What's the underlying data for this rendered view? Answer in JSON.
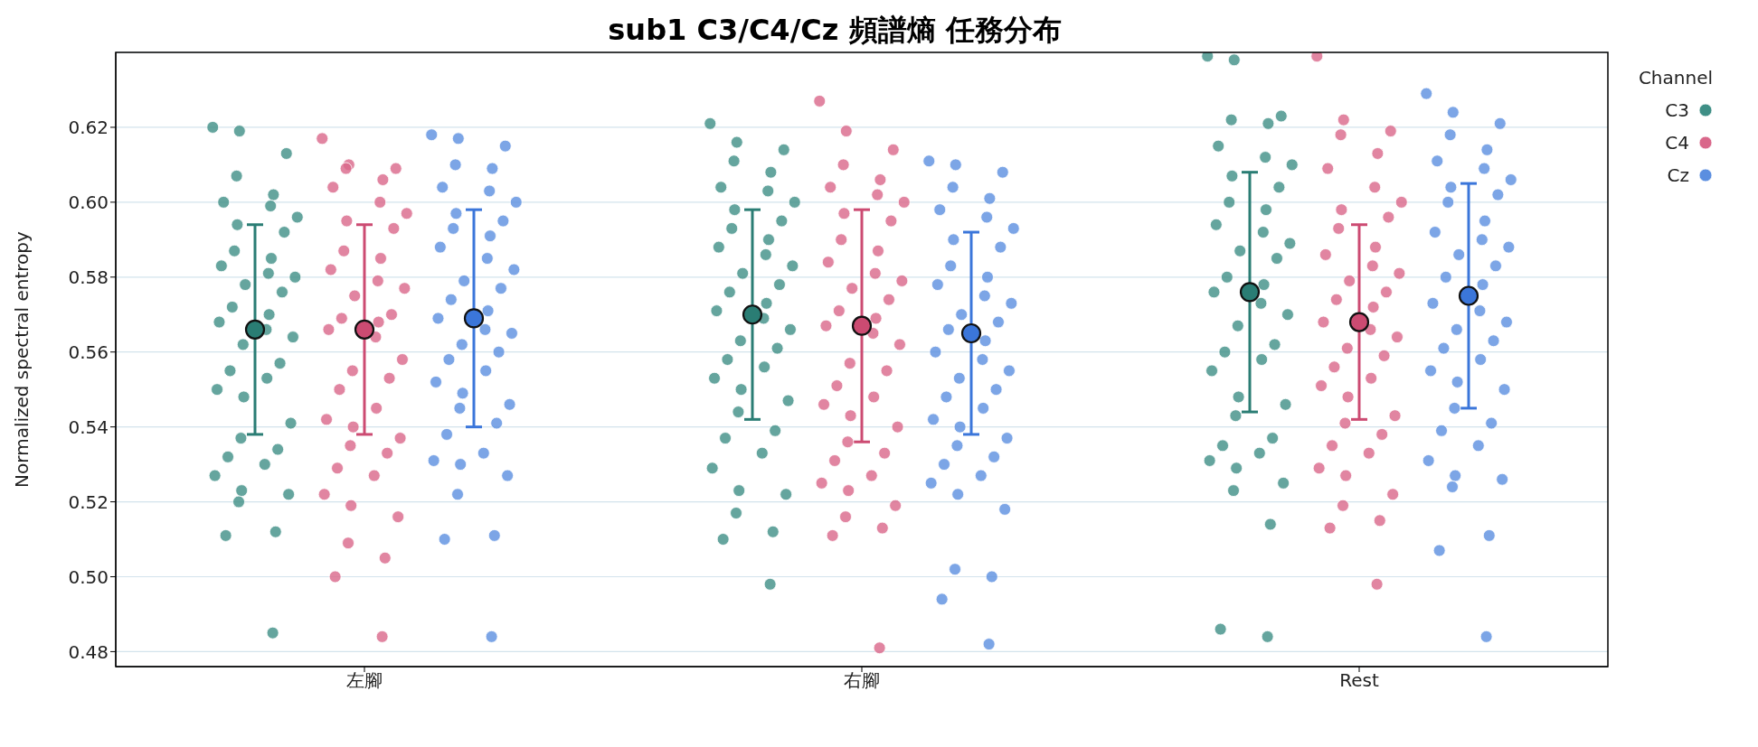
{
  "chart_data": {
    "type": "scatter",
    "title": "sub1 C3/C4/Cz 頻譜熵 任務分布",
    "ylabel": "Normalized spectral entropy",
    "legend_title": "Channel",
    "categories": [
      "左腳",
      "右腳",
      "Rest"
    ],
    "ylim": [
      0.476,
      0.64
    ],
    "yticks": [
      0.48,
      {
        "value": 0.5,
        "label": "0.50"
      },
      0.52,
      0.54,
      0.56,
      0.58,
      {
        "value": 0.6,
        "label": "0.60"
      },
      0.62
    ],
    "grid": "y",
    "legend": "top right",
    "marker": "circle",
    "series": [
      {
        "name": "C3",
        "color": "#3f8f86",
        "x": [
          "左腳",
          "左腳",
          "左腳",
          "左腳",
          "左腳",
          "左腳",
          "左腳",
          "左腳",
          "左腳",
          "左腳",
          "左腳",
          "左腳",
          "左腳",
          "左腳",
          "左腳",
          "左腳",
          "左腳",
          "左腳",
          "左腳",
          "左腳",
          "左腳",
          "左腳",
          "左腳",
          "左腳",
          "左腳",
          "左腳",
          "左腳",
          "左腳",
          "左腳",
          "左腳",
          "左腳",
          "左腳",
          "左腳",
          "左腳",
          "左腳",
          "左腳",
          "左腳",
          "左腳",
          "左腳",
          "左腳",
          "右腳",
          "右腳",
          "右腳",
          "右腳",
          "右腳",
          "右腳",
          "右腳",
          "右腳",
          "右腳",
          "右腳",
          "右腳",
          "右腳",
          "右腳",
          "右腳",
          "右腳",
          "右腳",
          "右腳",
          "右腳",
          "右腳",
          "右腳",
          "右腳",
          "右腳",
          "右腳",
          "右腳",
          "右腳",
          "右腳",
          "右腳",
          "右腳",
          "右腳",
          "右腳",
          "右腳",
          "右腳",
          "右腳",
          "右腳",
          "右腳",
          "右腳",
          "右腳",
          "右腳",
          "右腳",
          "右腳",
          "Rest",
          "Rest",
          "Rest",
          "Rest",
          "Rest",
          "Rest",
          "Rest",
          "Rest",
          "Rest",
          "Rest",
          "Rest",
          "Rest",
          "Rest",
          "Rest",
          "Rest",
          "Rest",
          "Rest",
          "Rest",
          "Rest",
          "Rest",
          "Rest",
          "Rest",
          "Rest",
          "Rest",
          "Rest",
          "Rest",
          "Rest",
          "Rest",
          "Rest",
          "Rest",
          "Rest",
          "Rest",
          "Rest",
          "Rest",
          "Rest",
          "Rest",
          "Rest",
          "Rest",
          "Rest",
          "Rest"
        ],
        "values": [
          0.62,
          0.619,
          0.613,
          0.607,
          0.602,
          0.6,
          0.599,
          0.596,
          0.594,
          0.592,
          0.587,
          0.585,
          0.583,
          0.581,
          0.58,
          0.578,
          0.576,
          0.572,
          0.57,
          0.568,
          0.566,
          0.564,
          0.562,
          0.557,
          0.555,
          0.553,
          0.55,
          0.548,
          0.541,
          0.537,
          0.534,
          0.532,
          0.53,
          0.527,
          0.523,
          0.522,
          0.52,
          0.512,
          0.511,
          0.485,
          0.621,
          0.616,
          0.614,
          0.611,
          0.608,
          0.604,
          0.603,
          0.6,
          0.598,
          0.595,
          0.593,
          0.59,
          0.588,
          0.586,
          0.583,
          0.581,
          0.578,
          0.576,
          0.573,
          0.571,
          0.569,
          0.566,
          0.563,
          0.561,
          0.558,
          0.556,
          0.553,
          0.55,
          0.547,
          0.544,
          0.539,
          0.537,
          0.533,
          0.529,
          0.523,
          0.522,
          0.517,
          0.512,
          0.51,
          0.498,
          0.639,
          0.638,
          0.623,
          0.622,
          0.621,
          0.615,
          0.612,
          0.61,
          0.607,
          0.604,
          0.6,
          0.598,
          0.594,
          0.592,
          0.589,
          0.587,
          0.585,
          0.58,
          0.578,
          0.576,
          0.573,
          0.57,
          0.567,
          0.562,
          0.56,
          0.558,
          0.555,
          0.548,
          0.546,
          0.543,
          0.537,
          0.535,
          0.533,
          0.531,
          0.529,
          0.525,
          0.523,
          0.514,
          0.486,
          0.484
        ]
      },
      {
        "name": "C4",
        "color": "#d9678a",
        "x": [
          "左腳",
          "左腳",
          "左腳",
          "左腳",
          "左腳",
          "左腳",
          "左腳",
          "左腳",
          "左腳",
          "左腳",
          "左腳",
          "左腳",
          "左腳",
          "左腳",
          "左腳",
          "左腳",
          "左腳",
          "左腳",
          "左腳",
          "左腳",
          "左腳",
          "左腳",
          "左腳",
          "左腳",
          "左腳",
          "左腳",
          "左腳",
          "左腳",
          "左腳",
          "左腳",
          "左腳",
          "左腳",
          "左腳",
          "左腳",
          "左腳",
          "左腳",
          "左腳",
          "左腳",
          "左腳",
          "左腳",
          "右腳",
          "右腳",
          "右腳",
          "右腳",
          "右腳",
          "右腳",
          "右腳",
          "右腳",
          "右腳",
          "右腳",
          "右腳",
          "右腳",
          "右腳",
          "右腳",
          "右腳",
          "右腳",
          "右腳",
          "右腳",
          "右腳",
          "右腳",
          "右腳",
          "右腳",
          "右腳",
          "右腳",
          "右腳",
          "右腳",
          "右腳",
          "右腳",
          "右腳",
          "右腳",
          "右腳",
          "右腳",
          "右腳",
          "右腳",
          "右腳",
          "右腳",
          "右腳",
          "右腳",
          "右腳",
          "右腳",
          "Rest",
          "Rest",
          "Rest",
          "Rest",
          "Rest",
          "Rest",
          "Rest",
          "Rest",
          "Rest",
          "Rest",
          "Rest",
          "Rest",
          "Rest",
          "Rest",
          "Rest",
          "Rest",
          "Rest",
          "Rest",
          "Rest",
          "Rest",
          "Rest",
          "Rest",
          "Rest",
          "Rest",
          "Rest",
          "Rest",
          "Rest",
          "Rest",
          "Rest",
          "Rest",
          "Rest",
          "Rest",
          "Rest",
          "Rest",
          "Rest",
          "Rest",
          "Rest",
          "Rest",
          "Rest",
          "Rest"
        ],
        "values": [
          0.617,
          0.61,
          0.609,
          0.609,
          0.606,
          0.604,
          0.6,
          0.597,
          0.595,
          0.593,
          0.587,
          0.585,
          0.582,
          0.579,
          0.577,
          0.575,
          0.57,
          0.569,
          0.568,
          0.566,
          0.564,
          0.558,
          0.555,
          0.553,
          0.55,
          0.545,
          0.542,
          0.54,
          0.537,
          0.535,
          0.533,
          0.529,
          0.527,
          0.522,
          0.519,
          0.516,
          0.509,
          0.505,
          0.5,
          0.484,
          0.627,
          0.619,
          0.614,
          0.61,
          0.606,
          0.604,
          0.602,
          0.6,
          0.597,
          0.595,
          0.59,
          0.587,
          0.584,
          0.581,
          0.579,
          0.577,
          0.574,
          0.571,
          0.569,
          0.567,
          0.565,
          0.562,
          0.557,
          0.555,
          0.551,
          0.548,
          0.546,
          0.543,
          0.54,
          0.536,
          0.533,
          0.531,
          0.527,
          0.525,
          0.523,
          0.519,
          0.516,
          0.513,
          0.511,
          0.481,
          0.639,
          0.622,
          0.619,
          0.618,
          0.613,
          0.609,
          0.604,
          0.6,
          0.598,
          0.596,
          0.593,
          0.588,
          0.586,
          0.583,
          0.581,
          0.579,
          0.576,
          0.574,
          0.572,
          0.568,
          0.566,
          0.564,
          0.561,
          0.559,
          0.556,
          0.553,
          0.551,
          0.548,
          0.543,
          0.541,
          0.538,
          0.535,
          0.533,
          0.529,
          0.527,
          0.522,
          0.519,
          0.515,
          0.513,
          0.498
        ]
      },
      {
        "name": "Cz",
        "color": "#5b8ee0",
        "x": [
          "左腳",
          "左腳",
          "左腳",
          "左腳",
          "左腳",
          "左腳",
          "左腳",
          "左腳",
          "左腳",
          "左腳",
          "左腳",
          "左腳",
          "左腳",
          "左腳",
          "左腳",
          "左腳",
          "左腳",
          "左腳",
          "左腳",
          "左腳",
          "左腳",
          "左腳",
          "左腳",
          "左腳",
          "左腳",
          "左腳",
          "左腳",
          "左腳",
          "左腳",
          "左腳",
          "左腳",
          "左腳",
          "左腳",
          "左腳",
          "左腳",
          "左腳",
          "左腳",
          "左腳",
          "左腳",
          "左腳",
          "右腳",
          "右腳",
          "右腳",
          "右腳",
          "右腳",
          "右腳",
          "右腳",
          "右腳",
          "右腳",
          "右腳",
          "右腳",
          "右腳",
          "右腳",
          "右腳",
          "右腳",
          "右腳",
          "右腳",
          "右腳",
          "右腳",
          "右腳",
          "右腳",
          "右腳",
          "右腳",
          "右腳",
          "右腳",
          "右腳",
          "右腳",
          "右腳",
          "右腳",
          "右腳",
          "右腳",
          "右腳",
          "右腳",
          "右腳",
          "右腳",
          "右腳",
          "右腳",
          "右腳",
          "右腳",
          "右腳",
          "Rest",
          "Rest",
          "Rest",
          "Rest",
          "Rest",
          "Rest",
          "Rest",
          "Rest",
          "Rest",
          "Rest",
          "Rest",
          "Rest",
          "Rest",
          "Rest",
          "Rest",
          "Rest",
          "Rest",
          "Rest",
          "Rest",
          "Rest",
          "Rest",
          "Rest",
          "Rest",
          "Rest",
          "Rest",
          "Rest",
          "Rest",
          "Rest",
          "Rest",
          "Rest",
          "Rest",
          "Rest",
          "Rest",
          "Rest",
          "Rest",
          "Rest",
          "Rest",
          "Rest",
          "Rest",
          "Rest"
        ],
        "values": [
          0.618,
          0.617,
          0.615,
          0.61,
          0.609,
          0.604,
          0.603,
          0.6,
          0.597,
          0.595,
          0.593,
          0.591,
          0.588,
          0.585,
          0.582,
          0.579,
          0.577,
          0.574,
          0.571,
          0.569,
          0.566,
          0.565,
          0.562,
          0.56,
          0.558,
          0.555,
          0.552,
          0.549,
          0.546,
          0.545,
          0.541,
          0.538,
          0.533,
          0.531,
          0.53,
          0.527,
          0.522,
          0.511,
          0.51,
          0.484,
          0.611,
          0.61,
          0.608,
          0.604,
          0.601,
          0.598,
          0.596,
          0.593,
          0.59,
          0.588,
          0.583,
          0.58,
          0.578,
          0.575,
          0.573,
          0.57,
          0.568,
          0.566,
          0.563,
          0.56,
          0.558,
          0.555,
          0.553,
          0.55,
          0.548,
          0.545,
          0.542,
          0.54,
          0.537,
          0.535,
          0.532,
          0.53,
          0.527,
          0.525,
          0.522,
          0.518,
          0.502,
          0.5,
          0.494,
          0.482,
          0.629,
          0.624,
          0.621,
          0.618,
          0.614,
          0.611,
          0.609,
          0.606,
          0.604,
          0.602,
          0.6,
          0.595,
          0.592,
          0.59,
          0.588,
          0.586,
          0.583,
          0.58,
          0.578,
          0.573,
          0.571,
          0.568,
          0.566,
          0.563,
          0.561,
          0.558,
          0.555,
          0.552,
          0.55,
          0.545,
          0.541,
          0.539,
          0.535,
          0.531,
          0.527,
          0.526,
          0.524,
          0.511,
          0.507,
          0.484
        ]
      },
      {
        "color": "#2a7d74",
        "values": [
          0.566,
          0.57,
          0.576
        ],
        "errors": [
          0.028,
          0.028,
          0.032
        ]
      },
      {
        "color": "#cc4b72",
        "values": [
          0.566,
          0.567,
          0.568
        ],
        "errors": [
          0.028,
          0.031,
          0.026
        ]
      },
      {
        "color": "#3b76da",
        "values": [
          0.569,
          0.565,
          0.575
        ],
        "errors": [
          0.029,
          0.027,
          0.03
        ]
      }
    ]
  }
}
